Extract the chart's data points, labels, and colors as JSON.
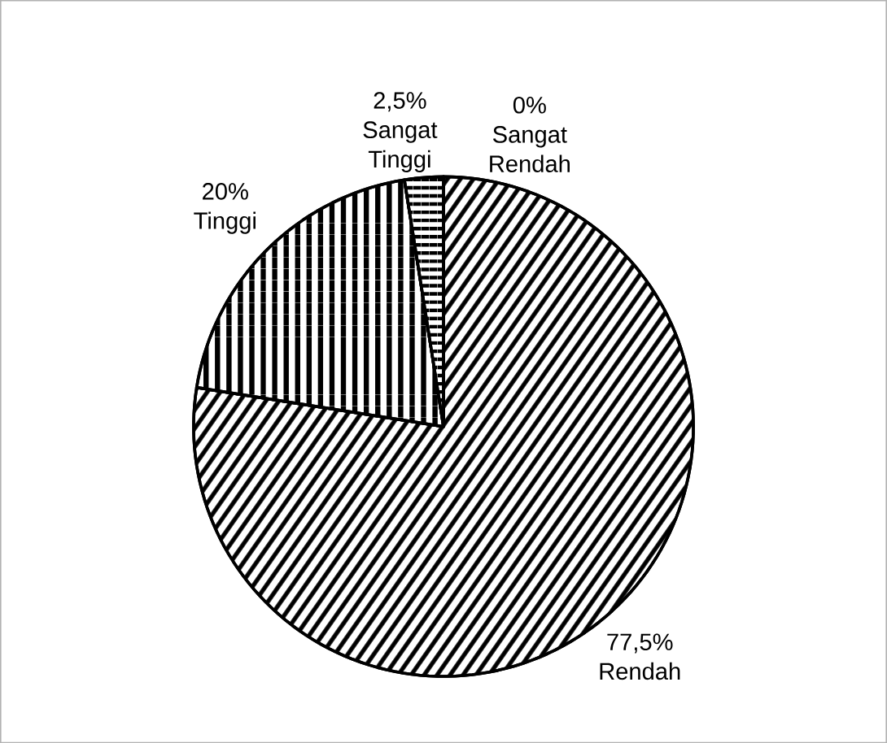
{
  "chart_data": {
    "type": "pie",
    "categories": [
      "Sangat Rendah",
      "Rendah",
      "Tinggi",
      "Sangat Tinggi"
    ],
    "values": [
      0,
      77.5,
      20,
      2.5
    ],
    "colors": [
      "#000000",
      "#000000",
      "#000000",
      "#000000"
    ],
    "value_labels": [
      "0%",
      "77,5%",
      "20%",
      "2,5%"
    ]
  }
}
